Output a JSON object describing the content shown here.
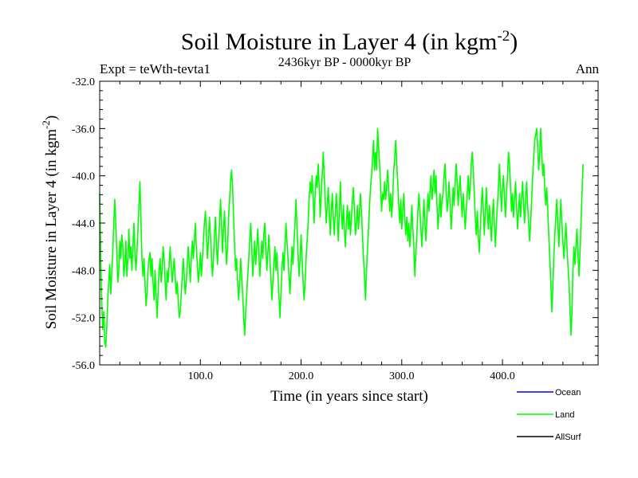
{
  "chart_data": {
    "type": "line",
    "title_main": "Soil Moisture in Layer 4 (in kgm",
    "title_sup": "-2",
    "title_close": ")",
    "subtitle": "2436kyr BP - 0000kyr BP",
    "left_label": "Expt = teWth-tevta1",
    "right_label": "Ann",
    "xlabel": "Time (in years since start)",
    "ylabel_main": "Soil Moisture in Layer 4 (in kgm",
    "ylabel_sup": "-2",
    "ylabel_close": ")",
    "xlim": [
      0,
      495
    ],
    "ylim": [
      -56,
      -32
    ],
    "x_ticks": [
      {
        "value": 100,
        "label": "100.0"
      },
      {
        "value": 200,
        "label": "200.0"
      },
      {
        "value": 300,
        "label": "300.0"
      },
      {
        "value": 400,
        "label": "400.0"
      }
    ],
    "y_ticks": [
      {
        "value": -32,
        "label": "-32.0"
      },
      {
        "value": -36,
        "label": "-36.0"
      },
      {
        "value": -40,
        "label": "-40.0"
      },
      {
        "value": -44,
        "label": "-44.0"
      },
      {
        "value": -48,
        "label": "-48.0"
      },
      {
        "value": -52,
        "label": "-52.0"
      },
      {
        "value": -56,
        "label": "-56.0"
      }
    ],
    "legend": [
      {
        "name": "Ocean",
        "color": "#0000ff"
      },
      {
        "name": "Land",
        "color": "#00ff00"
      },
      {
        "name": "AllSurf",
        "color": "#000000"
      }
    ],
    "series": [
      {
        "name": "Land",
        "color": "#00ff00",
        "x_start": 0,
        "x_step": 1,
        "values": [
          -41.5,
          -47,
          -50.5,
          -53,
          -51.5,
          -54,
          -54.5,
          -53,
          -50.5,
          -49,
          -47.5,
          -50,
          -48,
          -46.5,
          -44,
          -42,
          -44,
          -46.5,
          -49,
          -48,
          -45.5,
          -47,
          -45,
          -46,
          -48.5,
          -47.5,
          -45.5,
          -48.5,
          -47,
          -44.5,
          -47,
          -46,
          -48,
          -46,
          -44,
          -46.5,
          -48,
          -46.5,
          -44.5,
          -42.5,
          -40.5,
          -44,
          -47,
          -48.5,
          -47,
          -49,
          -51,
          -50,
          -48,
          -47,
          -46.5,
          -48.5,
          -47,
          -49,
          -50.5,
          -48,
          -50,
          -52,
          -50,
          -48,
          -47,
          -49,
          -48,
          -46,
          -47,
          -49,
          -50.5,
          -48,
          -49,
          -47.5,
          -46,
          -47.5,
          -49,
          -48,
          -47,
          -48.5,
          -50,
          -49,
          -50.5,
          -52,
          -51.5,
          -50,
          -48.5,
          -47,
          -48.5,
          -50,
          -49,
          -47.5,
          -46,
          -47.5,
          -49,
          -47,
          -45.5,
          -47,
          -45.5,
          -44,
          -46,
          -47.5,
          -49,
          -48,
          -46.5,
          -48.5,
          -47,
          -45.5,
          -44,
          -43,
          -45,
          -47,
          -45.5,
          -43.5,
          -45,
          -47,
          -48.5,
          -47,
          -45,
          -43.5,
          -46,
          -47.5,
          -45.5,
          -44,
          -42,
          -44,
          -46.5,
          -44.5,
          -43,
          -45.5,
          -47.5,
          -46,
          -43.5,
          -42,
          -40.5,
          -39.5,
          -41,
          -43.5,
          -46,
          -48,
          -47,
          -49,
          -50.5,
          -49,
          -47,
          -48.5,
          -50,
          -52,
          -53.5,
          -51.5,
          -50,
          -48.5,
          -47,
          -45.5,
          -44,
          -46,
          -48.5,
          -47,
          -45.5,
          -47.5,
          -46,
          -44.5,
          -46.5,
          -48.5,
          -47,
          -45.5,
          -47,
          -45,
          -44,
          -46,
          -48,
          -46.5,
          -45,
          -47,
          -48.5,
          -50.5,
          -49,
          -47.5,
          -46,
          -48,
          -46.5,
          -48.5,
          -50,
          -52,
          -50,
          -48,
          -46.5,
          -48,
          -46,
          -44,
          -45.5,
          -47,
          -48.5,
          -50,
          -48,
          -46,
          -47.5,
          -45.5,
          -44,
          -42,
          -44.5,
          -46.5,
          -48.5,
          -47,
          -45,
          -47,
          -49,
          -50.5,
          -49,
          -47,
          -45.5,
          -44,
          -42,
          -40.5,
          -41.5,
          -40,
          -42,
          -44,
          -41.5,
          -40,
          -41,
          -39,
          -41,
          -43.5,
          -41.5,
          -40,
          -38,
          -40,
          -42,
          -44,
          -42.5,
          -41,
          -43,
          -45,
          -43,
          -41.5,
          -43.5,
          -45,
          -43,
          -41.5,
          -43.5,
          -45.5,
          -43,
          -40.5,
          -43,
          -44.5,
          -42.5,
          -44.5,
          -46,
          -44,
          -42.5,
          -44.5,
          -43,
          -45,
          -43.5,
          -42,
          -41,
          -43,
          -45,
          -44,
          -42.5,
          -44.5,
          -43,
          -41.5,
          -43,
          -45,
          -47,
          -48.5,
          -50.5,
          -48,
          -46,
          -44.5,
          -42.5,
          -41,
          -40,
          -38.5,
          -37,
          -39.5,
          -38,
          -39.5,
          -36,
          -37.5,
          -39,
          -41,
          -43,
          -41.5,
          -42,
          -40.5,
          -42,
          -41,
          -39.5,
          -41,
          -43,
          -41.5,
          -43.5,
          -42,
          -39.5,
          -38.5,
          -37,
          -39,
          -40.5,
          -42.5,
          -44,
          -42,
          -44.5,
          -43,
          -41.5,
          -43.5,
          -45,
          -43.5,
          -45.5,
          -44,
          -46,
          -44.5,
          -42.5,
          -44.5,
          -46,
          -48.5,
          -46.5,
          -45,
          -43,
          -41.5,
          -43,
          -44.5,
          -46,
          -44,
          -42,
          -44,
          -45.5,
          -43.5,
          -41.5,
          -43,
          -41.5,
          -40,
          -42,
          -41,
          -39.5,
          -41.5,
          -40,
          -42.5,
          -44.5,
          -43,
          -41.5,
          -43.5,
          -42,
          -41.5,
          -40,
          -39,
          -41,
          -43,
          -42,
          -40.5,
          -42.5,
          -44.5,
          -43,
          -41,
          -42.5,
          -40.5,
          -39,
          -40.5,
          -42.5,
          -41,
          -40,
          -42,
          -43.5,
          -41.5,
          -43,
          -44.5,
          -43,
          -41.5,
          -40,
          -42,
          -41,
          -39,
          -38,
          -39.5,
          -41.5,
          -43.5,
          -45,
          -43,
          -45,
          -46.5,
          -44.5,
          -42.5,
          -41,
          -43,
          -45,
          -43,
          -41,
          -43,
          -44.5,
          -42.5,
          -44,
          -45.5,
          -43.5,
          -42,
          -44,
          -46,
          -44,
          -42.5,
          -41,
          -39,
          -41,
          -43,
          -41,
          -40,
          -42,
          -43.5,
          -41.5,
          -40,
          -38,
          -39,
          -41,
          -43,
          -41.5,
          -43.5,
          -42,
          -40.5,
          -42.5,
          -44.5,
          -43,
          -41.5,
          -43.5,
          -42,
          -40.5,
          -42.5,
          -44,
          -42,
          -40.5,
          -42.5,
          -44,
          -45.5,
          -44,
          -42,
          -40,
          -38.5,
          -37,
          -36.5,
          -36,
          -37.5,
          -39.5,
          -38,
          -36,
          -38,
          -40,
          -39,
          -41,
          -42.5,
          -41,
          -43,
          -45,
          -47,
          -49,
          -51.5,
          -49.5,
          -47,
          -45,
          -43.5,
          -42,
          -44,
          -46,
          -44,
          -42,
          -44,
          -45.5,
          -47,
          -45.5,
          -44,
          -46,
          -47.5,
          -49,
          -51,
          -53.5,
          -51.5,
          -48,
          -46,
          -47.5,
          -46,
          -44.5,
          -46.5,
          -48.5,
          -46.5,
          -44,
          -41.5,
          -39
        ]
      }
    ]
  }
}
